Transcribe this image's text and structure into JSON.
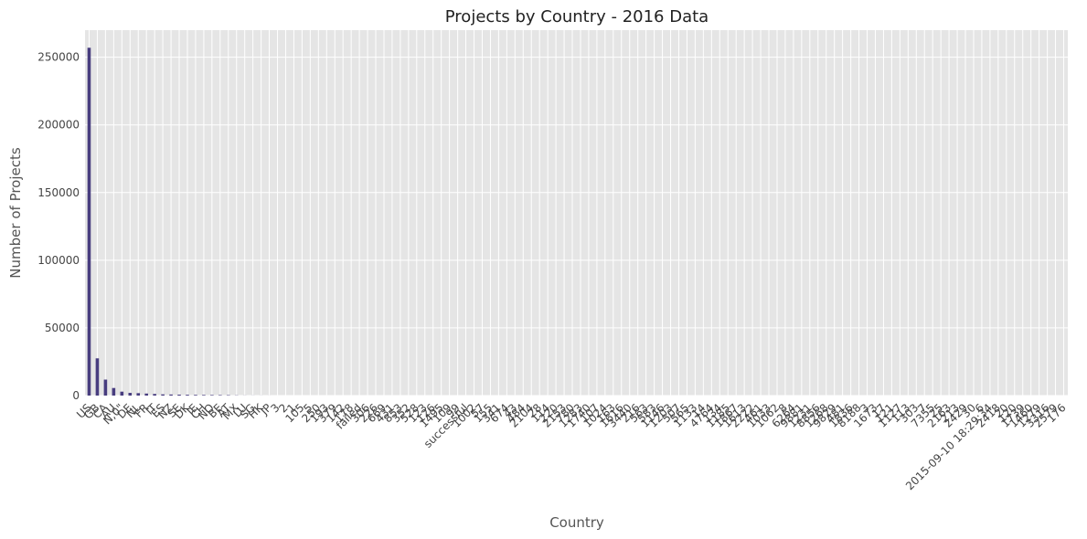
{
  "chart_data": {
    "type": "bar",
    "title": "Projects by Country - 2016 Data",
    "x_label": "Country",
    "y_label": "Number of Projects",
    "categories": [
      "US",
      "GB",
      "CA",
      "AU",
      "N,0\"",
      "DE",
      "NL",
      "FR",
      "IT",
      "ES",
      "NZ",
      "SE",
      "DK",
      "IE",
      "CH",
      "NO",
      "BE",
      "AT",
      "MX",
      "LU",
      "SG",
      "HK",
      "JP",
      "3",
      "2",
      "1",
      "105",
      "5",
      "250",
      "193",
      "379",
      "142",
      "178",
      "failed",
      "306",
      "226",
      "669",
      "431",
      "853",
      "352",
      "528",
      "123",
      "126",
      "1495",
      "109",
      "99",
      "successful",
      "1002",
      "57",
      "155",
      "341",
      "674",
      "43",
      "484",
      "2104",
      "28",
      "114",
      "220",
      "2153",
      "780",
      "1283",
      "1740",
      "107",
      "1024",
      "163",
      "1616",
      "3440",
      "216",
      "563",
      "583",
      "1146",
      "1203",
      "507",
      "565",
      "1133",
      "14",
      "4764",
      "134",
      "1185",
      "1867",
      "1613",
      "2222",
      "461",
      "1033",
      "1062",
      "8",
      "6264",
      "9881",
      "1231",
      "8856",
      "1268",
      "9829",
      "481",
      "1836",
      "8188",
      "3",
      "1673",
      "17",
      "121",
      "1127",
      "113",
      "303",
      "7",
      "7355",
      "25",
      "2163",
      "213",
      "2429",
      "30",
      "6",
      "2015-09-10 18:29:34",
      "2418",
      "20",
      "120",
      "1739",
      "1460",
      "1279",
      "3316",
      "2579",
      "176"
    ],
    "values": [
      257000,
      27500,
      11800,
      5600,
      2900,
      2000,
      1800,
      1500,
      1200,
      900,
      800,
      700,
      600,
      500,
      450,
      400,
      350,
      300,
      150,
      60,
      50,
      40,
      20,
      1,
      1,
      1,
      1,
      1,
      1,
      1,
      1,
      1,
      1,
      1,
      1,
      1,
      1,
      1,
      1,
      1,
      1,
      1,
      1,
      1,
      1,
      1,
      1,
      1,
      1,
      1,
      1,
      1,
      1,
      1,
      1,
      1,
      1,
      1,
      1,
      1,
      1,
      1,
      1,
      1,
      1,
      1,
      1,
      1,
      1,
      1,
      1,
      1,
      1,
      1,
      1,
      1,
      1,
      1,
      1,
      1,
      1,
      1,
      1,
      1,
      1,
      1,
      1,
      1,
      1,
      1,
      1,
      1,
      1,
      1,
      1,
      1,
      1,
      1,
      1,
      1,
      1,
      1,
      1,
      1,
      1,
      1,
      1,
      1,
      1,
      1,
      1,
      1,
      1,
      1,
      1,
      1,
      1,
      1,
      1,
      1
    ],
    "color": "#483d7f",
    "ylim": [
      0,
      270000
    ],
    "yticks": [
      0,
      50000,
      100000,
      150000,
      200000,
      250000
    ],
    "grid": true
  }
}
